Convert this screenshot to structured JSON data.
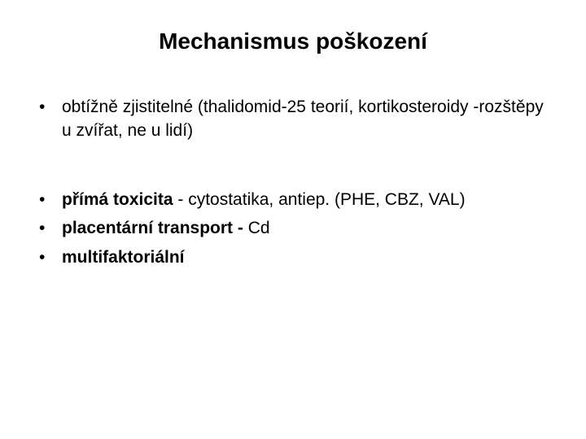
{
  "slide": {
    "title": "Mechanismus poškození",
    "group1": {
      "item1": {
        "text": "obtížně zjistitelné (thalidomid-25 teorií, kortikosteroidy -rozštěpy u zvířat, ne u lidí)"
      }
    },
    "group2": {
      "item1": {
        "bold": "přímá toxicita",
        "rest": " - cytostatika, antiep. (PHE, CBZ, VAL)"
      },
      "item2": {
        "bold": "placentární transport - ",
        "rest": "Cd"
      },
      "item3": {
        "bold": "multifaktoriální"
      }
    }
  },
  "style": {
    "background_color": "#ffffff",
    "text_color": "#000000",
    "title_fontsize": 28,
    "body_fontsize": 21,
    "font_family": "Arial"
  }
}
